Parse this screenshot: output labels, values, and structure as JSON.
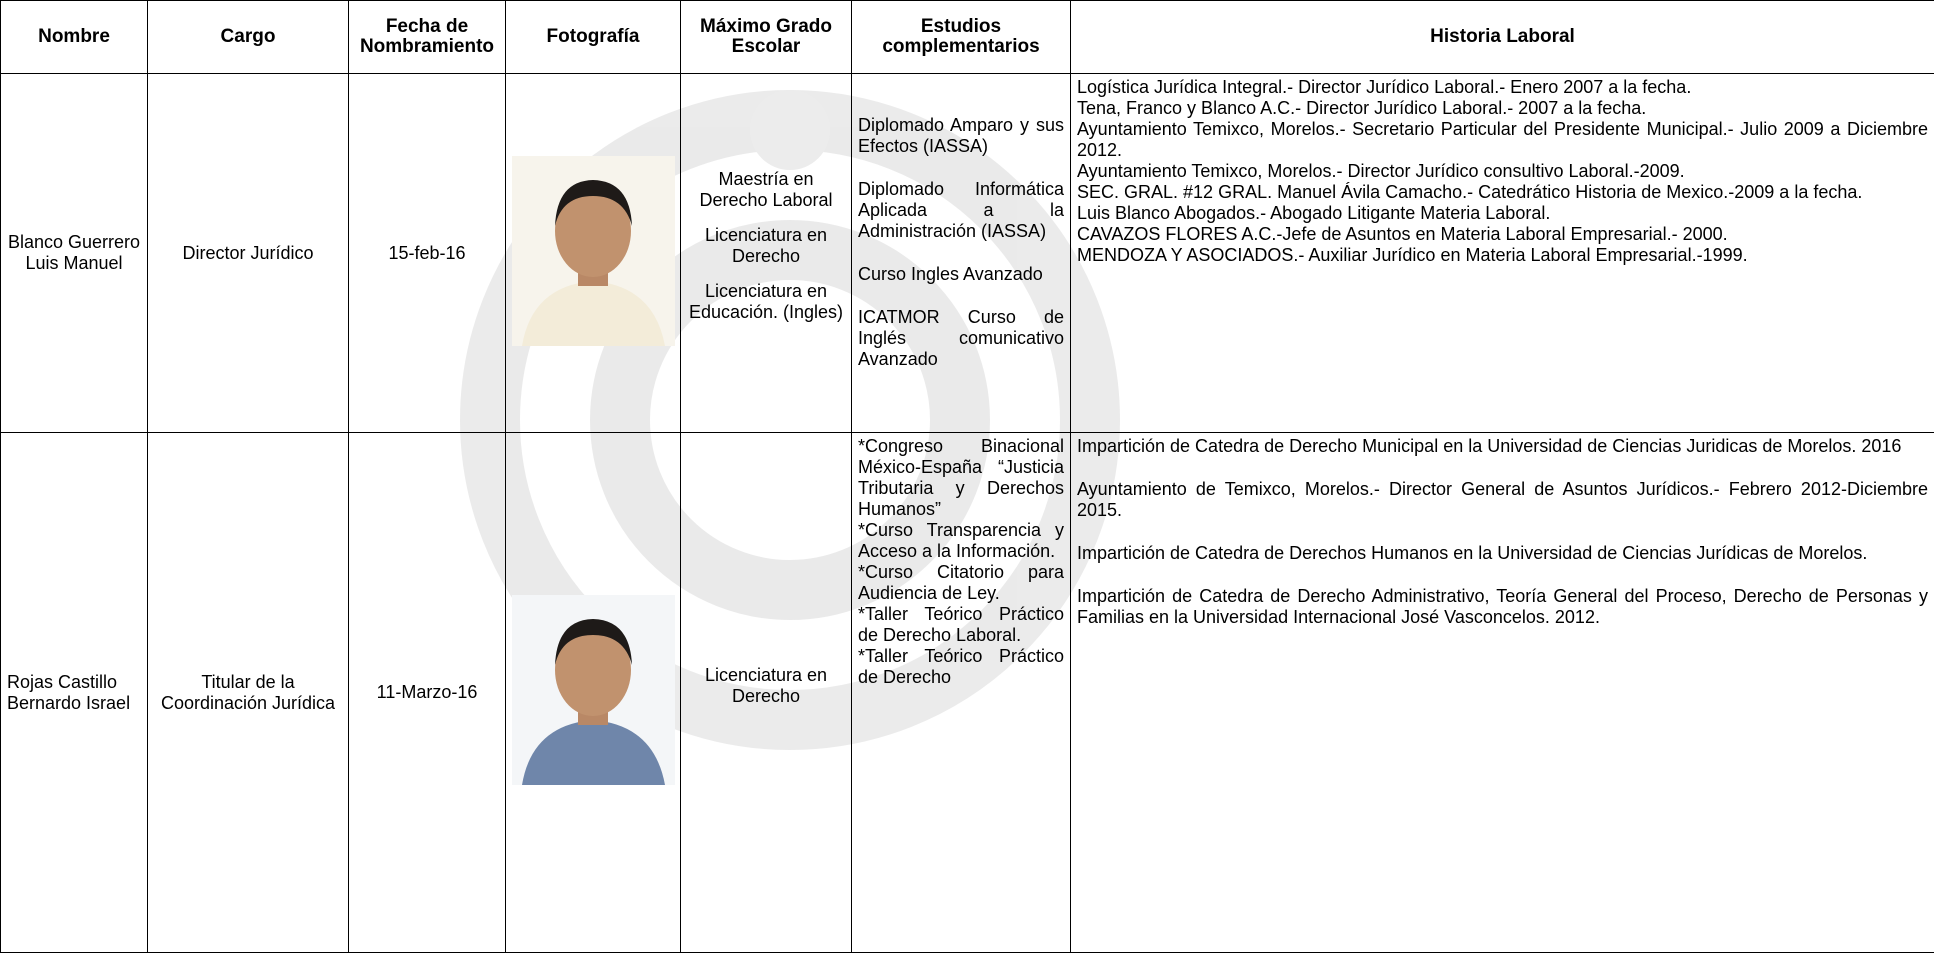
{
  "table": {
    "headers": [
      "Nombre",
      "Cargo",
      "Fecha de Nombramiento",
      "Fotografía",
      "Máximo Grado Escolar",
      "Estudios complementarios",
      "Historia Laboral"
    ],
    "rows": [
      {
        "nombre": "Blanco Guerrero Luis Manuel",
        "cargo": "Director Jurídico",
        "fecha": "15-feb-16",
        "grado": [
          "Maestría en Derecho Laboral",
          "Licenciatura en Derecho",
          "Licenciatura en Educación. (Ingles)"
        ],
        "estudios": [
          "Diplomado Amparo y sus Efectos (IASSA)",
          "Diplomado Informática Aplicada a la Administración (IASSA)",
          "Curso Ingles Avanzado",
          "ICATMOR Curso de Inglés comunicativo Avanzado"
        ],
        "historia": [
          "Logística Jurídica Integral.- Director Jurídico Laboral.- Enero 2007 a la fecha.",
          "Tena, Franco y Blanco A.C.- Director Jurídico Laboral.- 2007 a la fecha.",
          "Ayuntamiento Temixco, Morelos.- Secretario Particular del Presidente Municipal.- Julio 2009 a Diciembre 2012.",
          "Ayuntamiento Temixco, Morelos.- Director Jurídico consultivo Laboral.-2009.",
          "SEC. GRAL. #12 GRAL. Manuel Ávila Camacho.- Catedrático Historia de Mexico.-2009 a la fecha.",
          "Luis Blanco Abogados.- Abogado Litigante Materia Laboral.",
          "CAVAZOS FLORES A.C.-Jefe de Asuntos en Materia Laboral Empresarial.- 2000.",
          "MENDOZA Y ASOCIADOS.- Auxiliar Jurídico en Materia Laboral Empresarial.-1999."
        ]
      },
      {
        "nombre": "Rojas Castillo Bernardo Israel",
        "cargo": "Titular de la Coordinación Jurídica",
        "fecha": "11-Marzo-16",
        "grado": [
          "Licenciatura en Derecho"
        ],
        "estudios": [
          "*Congreso Binacional México-España “Justicia Tributaria y Derechos Humanos”",
          "*Curso Transparencia y Acceso a la Información.",
          "*Curso Citatorio para Audiencia de Ley.",
          "*Taller Teórico Práctico de Derecho Laboral.",
          "*Taller Teórico Práctico de Derecho"
        ],
        "historia": [
          "Impartición de Catedra de Derecho Municipal en la Universidad de Ciencias Juridicas de Morelos. 2016",
          "Ayuntamiento de Temixco, Morelos.- Director General de Asuntos Jurídicos.- Febrero 2012-Diciembre 2015.",
          "Impartición de Catedra de Derechos Humanos en la Universidad de Ciencias Jurídicas de Morelos.",
          "Impartición de Catedra de Derecho Administrativo, Teoría General del Proceso, Derecho de Personas y Familias en la Universidad Internacional José Vasconcelos. 2012."
        ]
      }
    ]
  }
}
